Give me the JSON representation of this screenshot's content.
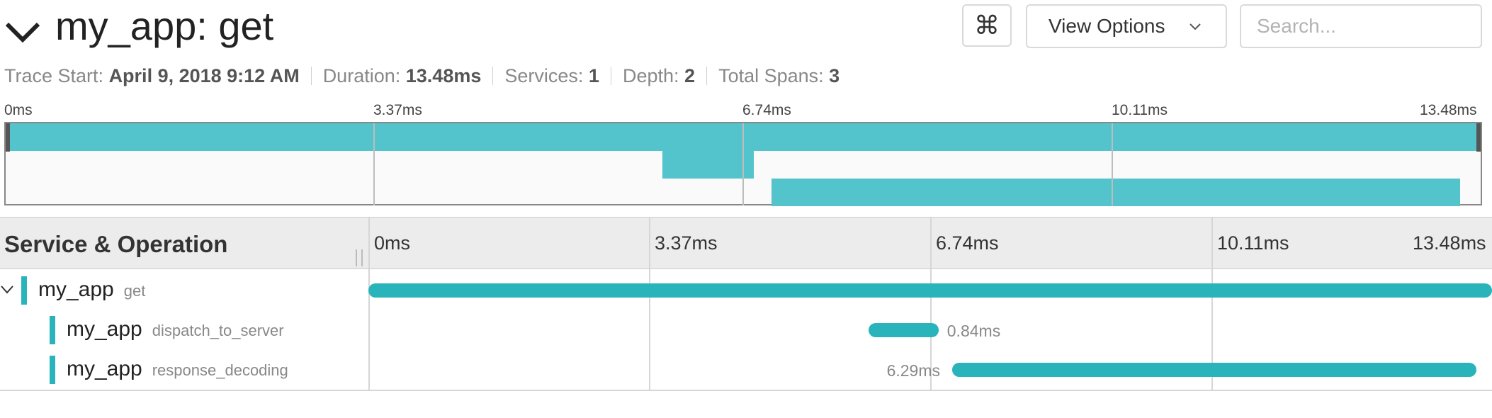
{
  "header": {
    "title": "my_app: get",
    "cmd_label": "⌘",
    "view_options_label": "View Options",
    "search_placeholder": "Search..."
  },
  "meta": {
    "trace_start_label": "Trace Start:",
    "trace_start_value": "April 9, 2018 9:12 AM",
    "duration_label": "Duration:",
    "duration_value": "13.48ms",
    "services_label": "Services:",
    "services_value": "1",
    "depth_label": "Depth:",
    "depth_value": "2",
    "total_spans_label": "Total Spans:",
    "total_spans_value": "3"
  },
  "timeline": {
    "ticks": [
      "0ms",
      "3.37ms",
      "6.74ms",
      "10.11ms",
      "13.48ms"
    ]
  },
  "table": {
    "column_title": "Service & Operation"
  },
  "spans": [
    {
      "service": "my_app",
      "operation": "get",
      "start_ms": 0.0,
      "duration_ms": 13.48,
      "duration_label": ""
    },
    {
      "service": "my_app",
      "operation": "dispatch_to_server",
      "start_ms": 6.0,
      "duration_ms": 0.84,
      "duration_label": "0.84ms"
    },
    {
      "service": "my_app",
      "operation": "response_decoding",
      "start_ms": 7.0,
      "duration_ms": 6.29,
      "duration_label": "6.29ms"
    }
  ],
  "colors": {
    "span": "#29b4bc",
    "minimap_span": "#53c3cc"
  }
}
